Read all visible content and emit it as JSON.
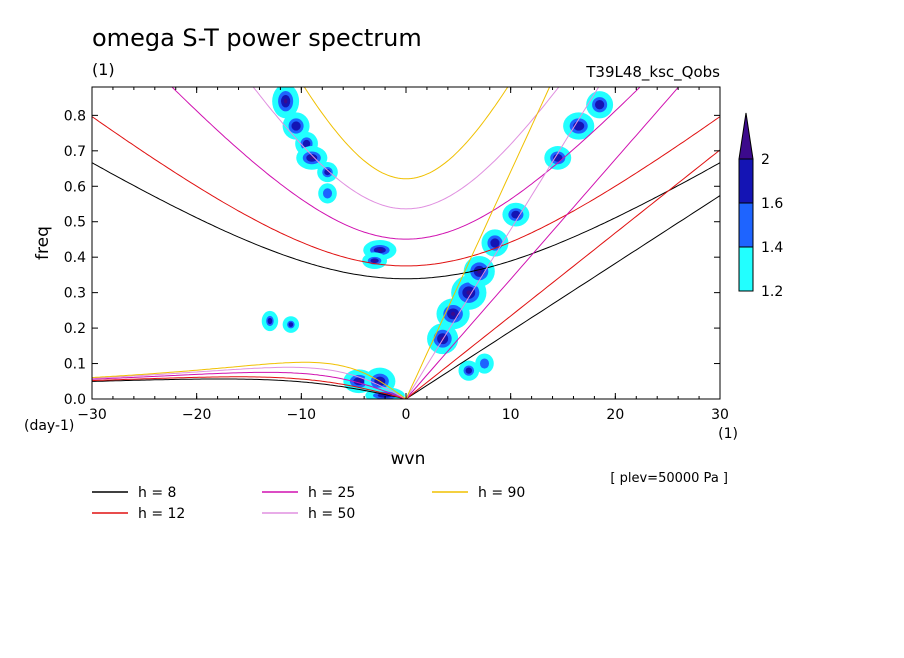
{
  "header": {
    "title": "omega S-T power spectrum",
    "subtitle": "(1)",
    "run_name": "T39L48_ksc_Qobs",
    "plev_note": "[ plev=50000 Pa ]"
  },
  "chart_data": {
    "type": "contour",
    "xlabel": "wvn",
    "ylabel": "freq",
    "x_unit": "(1)",
    "y_unit": "(day-1)",
    "xlim": [
      -30,
      30
    ],
    "ylim": [
      0,
      0.88
    ],
    "x_ticks": [
      -30,
      -20,
      -10,
      0,
      10,
      20,
      30
    ],
    "y_ticks": [
      0.0,
      0.1,
      0.2,
      0.3,
      0.4,
      0.5,
      0.6,
      0.7,
      0.8
    ],
    "x_tick_labels": [
      "−30",
      "−20",
      "−10",
      "0",
      "10",
      "20",
      "30"
    ],
    "y_tick_labels": [
      "0.0",
      "0.1",
      "0.2",
      "0.3",
      "0.4",
      "0.5",
      "0.6",
      "0.7",
      "0.8"
    ],
    "colorbar": {
      "levels": [
        "1.2",
        "1.4",
        "1.6",
        "2"
      ],
      "colors": [
        "#22ffff",
        "#1e64ff",
        "#1414b4",
        "#3c0a8c"
      ]
    },
    "legend": [
      {
        "label": "h =  8",
        "h": 8,
        "color": "#000000"
      },
      {
        "label": "h = 12",
        "h": 12,
        "color": "#e01010"
      },
      {
        "label": "h = 25",
        "h": 25,
        "color": "#d010b0"
      },
      {
        "label": "h = 50",
        "h": 50,
        "color": "#e090e0"
      },
      {
        "label": "h = 90",
        "h": 90,
        "color": "#f0c000"
      }
    ],
    "blobs": [
      {
        "x": -11.5,
        "y": 0.84,
        "rx": 1.0,
        "ry": 0.04,
        "level": 3
      },
      {
        "x": -10.5,
        "y": 0.77,
        "rx": 1.0,
        "ry": 0.03,
        "level": 2
      },
      {
        "x": -9.5,
        "y": 0.72,
        "rx": 0.8,
        "ry": 0.025,
        "level": 2
      },
      {
        "x": -9.0,
        "y": 0.68,
        "rx": 1.2,
        "ry": 0.025,
        "level": 3
      },
      {
        "x": -7.5,
        "y": 0.64,
        "rx": 0.7,
        "ry": 0.02,
        "level": 2
      },
      {
        "x": -7.5,
        "y": 0.58,
        "rx": 0.6,
        "ry": 0.02,
        "level": 1
      },
      {
        "x": -2.5,
        "y": 0.42,
        "rx": 1.3,
        "ry": 0.02,
        "level": 3
      },
      {
        "x": -3.0,
        "y": 0.39,
        "rx": 0.9,
        "ry": 0.015,
        "level": 3
      },
      {
        "x": -13.0,
        "y": 0.22,
        "rx": 0.5,
        "ry": 0.02,
        "level": 2
      },
      {
        "x": -11.0,
        "y": 0.21,
        "rx": 0.5,
        "ry": 0.015,
        "level": 2
      },
      {
        "x": -4.5,
        "y": 0.05,
        "rx": 1.2,
        "ry": 0.025,
        "level": 3
      },
      {
        "x": -2.5,
        "y": 0.05,
        "rx": 1.2,
        "ry": 0.03,
        "level": 3
      },
      {
        "x": -2.0,
        "y": 0.01,
        "rx": 1.6,
        "ry": 0.015,
        "level": 2
      },
      {
        "x": 3.5,
        "y": 0.17,
        "rx": 1.2,
        "ry": 0.035,
        "level": 3
      },
      {
        "x": 4.5,
        "y": 0.24,
        "rx": 1.3,
        "ry": 0.035,
        "level": 3
      },
      {
        "x": 6.0,
        "y": 0.3,
        "rx": 1.4,
        "ry": 0.04,
        "level": 3
      },
      {
        "x": 7.0,
        "y": 0.36,
        "rx": 1.2,
        "ry": 0.035,
        "level": 3
      },
      {
        "x": 8.5,
        "y": 0.44,
        "rx": 1.0,
        "ry": 0.03,
        "level": 2
      },
      {
        "x": 10.5,
        "y": 0.52,
        "rx": 1.0,
        "ry": 0.025,
        "level": 2
      },
      {
        "x": 14.5,
        "y": 0.68,
        "rx": 1.0,
        "ry": 0.025,
        "level": 2
      },
      {
        "x": 16.5,
        "y": 0.77,
        "rx": 1.2,
        "ry": 0.03,
        "level": 2
      },
      {
        "x": 18.5,
        "y": 0.83,
        "rx": 1.0,
        "ry": 0.03,
        "level": 2
      },
      {
        "x": 6.0,
        "y": 0.08,
        "rx": 0.7,
        "ry": 0.02,
        "level": 2
      },
      {
        "x": 7.5,
        "y": 0.1,
        "rx": 0.6,
        "ry": 0.02,
        "level": 1
      }
    ]
  }
}
